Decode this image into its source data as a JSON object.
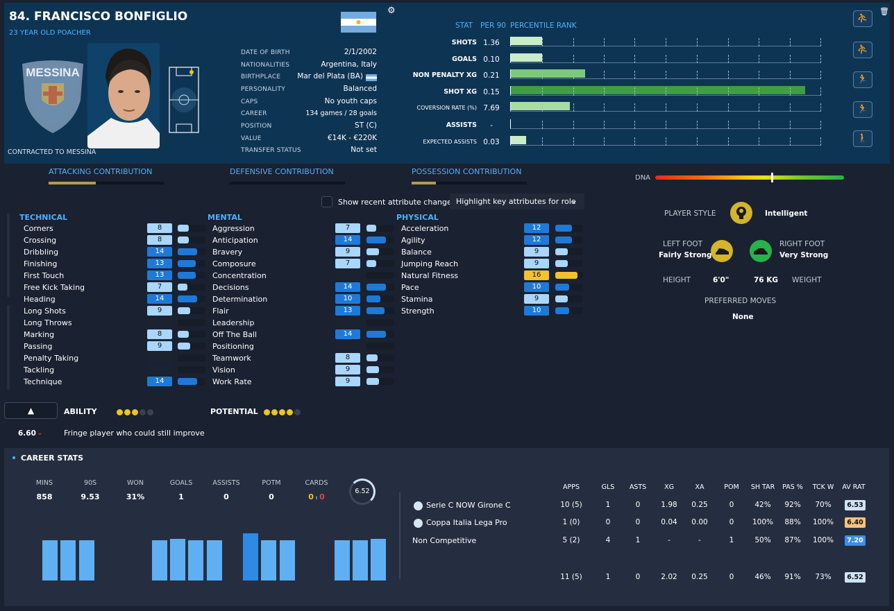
{
  "player": {
    "name": "84. FRANCISCO BONFIGLIO",
    "subtitle": "23 YEAR OLD POACHER",
    "contracted": "CONTRACTED TO MESSINA",
    "club_badge_text": "MESSINA"
  },
  "info": [
    {
      "label": "DATE OF BIRTH",
      "value": "2/1/2002"
    },
    {
      "label": "NATIONALITIES",
      "value": "Argentina, Italy"
    },
    {
      "label": "BIRTHPLACE",
      "value": "Mar del Plata (BA)"
    },
    {
      "label": "PERSONALITY",
      "value": "Balanced"
    },
    {
      "label": "CAPS",
      "value": "No youth caps"
    },
    {
      "label": "CAREER",
      "value": "134 games /  28 goals"
    },
    {
      "label": "POSITION",
      "value": "ST (C)"
    },
    {
      "label": "VALUE",
      "value": "€14K - €220K"
    },
    {
      "label": "TRANSFER STATUS",
      "value": "Not set"
    }
  ],
  "stats_header": {
    "stat": "STAT",
    "per90": "PER 90",
    "rank": "PERCENTILE RANK"
  },
  "stats": [
    {
      "label": "SHOTS",
      "per90": "1.36",
      "pct": 0.1,
      "color": "#c9ecc9"
    },
    {
      "label": "GOALS",
      "per90": "0.10",
      "pct": 0.1,
      "color": "#c9ecc9"
    },
    {
      "label": "NON PENALTY XG",
      "per90": "0.21",
      "pct": 0.24,
      "color": "#7cc97a"
    },
    {
      "label": "SHOT XG",
      "per90": "0.15",
      "pct": 0.95,
      "color": "#3f9e3f"
    },
    {
      "label": "COVERSION RATE (%)",
      "per90": "7.69",
      "pct": 0.19,
      "color": "#a8dca7"
    },
    {
      "label": "ASSISTS",
      "per90": "-",
      "pct": 0,
      "color": "#c9ecc9"
    },
    {
      "label": "EXPECTED ASSISTS",
      "per90": "0.03",
      "pct": 0.05,
      "color": "#c9ecc9"
    }
  ],
  "contribution": [
    {
      "label": "ATTACKING CONTRIBUTION",
      "value": 0.41
    },
    {
      "label": "DEFENSIVE CONTRIBUTION",
      "value": 0.0
    },
    {
      "label": "POSSESSION CONTRIBUTION",
      "value": 0.21
    }
  ],
  "dna": {
    "label": "DNA",
    "value": 0.62
  },
  "controls": {
    "show_recent": "Show recent attribute changes",
    "highlight": "Highlight key attributes for role"
  },
  "attributes": {
    "technical": {
      "title": "TECHNICAL",
      "items": [
        {
          "name": "Corners",
          "value": "8"
        },
        {
          "name": "Crossing",
          "value": "8"
        },
        {
          "name": "Dribbling",
          "value": "14"
        },
        {
          "name": "Finishing",
          "value": "13"
        },
        {
          "name": "First Touch",
          "value": "13"
        },
        {
          "name": "Free Kick Taking",
          "value": "7"
        },
        {
          "name": "Heading",
          "value": "14"
        },
        {
          "name": "Long Shots",
          "value": "9"
        },
        {
          "name": "Long Throws",
          "value": ""
        },
        {
          "name": "Marking",
          "value": "8"
        },
        {
          "name": "Passing",
          "value": "9"
        },
        {
          "name": "Penalty Taking",
          "value": ""
        },
        {
          "name": "Tackling",
          "value": ""
        },
        {
          "name": "Technique",
          "value": "14"
        }
      ]
    },
    "mental": {
      "title": "MENTAL",
      "items": [
        {
          "name": "Aggression",
          "value": "7"
        },
        {
          "name": "Anticipation",
          "value": "14"
        },
        {
          "name": "Bravery",
          "value": "9"
        },
        {
          "name": "Composure",
          "value": "7"
        },
        {
          "name": "Concentration",
          "value": ""
        },
        {
          "name": "Decisions",
          "value": "14"
        },
        {
          "name": "Determination",
          "value": "10"
        },
        {
          "name": "Flair",
          "value": "13"
        },
        {
          "name": "Leadership",
          "value": ""
        },
        {
          "name": "Off The Ball",
          "value": "14"
        },
        {
          "name": "Positioning",
          "value": ""
        },
        {
          "name": "Teamwork",
          "value": "8"
        },
        {
          "name": "Vision",
          "value": "9"
        },
        {
          "name": "Work Rate",
          "value": "9"
        }
      ]
    },
    "physical": {
      "title": "PHYSICAL",
      "items": [
        {
          "name": "Acceleration",
          "value": "12"
        },
        {
          "name": "Agility",
          "value": "12"
        },
        {
          "name": "Balance",
          "value": "9"
        },
        {
          "name": "Jumping Reach",
          "value": "9"
        },
        {
          "name": "Natural Fitness",
          "value": "16"
        },
        {
          "name": "Pace",
          "value": "10"
        },
        {
          "name": "Stamina",
          "value": "9"
        },
        {
          "name": "Strength",
          "value": "10"
        }
      ]
    }
  },
  "ability": {
    "label": "ABILITY",
    "stars": 3,
    "potential_label": "POTENTIAL",
    "potential_stars": 4
  },
  "rating": {
    "value": "6.60",
    "description": "Fringe player who could still improve"
  },
  "profile": {
    "player_style_label": "PLAYER STYLE",
    "player_style": "Intelligent",
    "left_foot_label": "LEFT FOOT",
    "left_foot": "Fairly Strong",
    "right_foot_label": "RIGHT FOOT",
    "right_foot": "Very Strong",
    "height_label": "HEIGHT",
    "height": "6'0\"",
    "weight_label": "WEIGHT",
    "weight": "76 KG",
    "preferred_moves_label": "PREFERRED MOVES",
    "preferred_moves": "None"
  },
  "career": {
    "title": "CAREER STATS",
    "summary": [
      {
        "label": "MINS",
        "value": "858"
      },
      {
        "label": "90S",
        "value": "9.53"
      },
      {
        "label": "WON",
        "value": "31%"
      },
      {
        "label": "GOALS",
        "value": "1"
      },
      {
        "label": "ASSISTS",
        "value": "0"
      },
      {
        "label": "POTM",
        "value": "0"
      }
    ],
    "cards_label": "CARDS",
    "yellow": "0",
    "red": "0",
    "avg_rating": "6.52",
    "histogram": [
      0.86,
      0.86,
      0.86,
      0,
      0,
      0,
      0.86,
      0.88,
      0.86,
      0.86,
      0,
      1.0,
      0.86,
      0.86,
      0,
      0.86,
      0.86,
      0.88
    ],
    "columns": [
      "APPS",
      "GLS",
      "ASTS",
      "XG",
      "XA",
      "POM",
      "SH TAR",
      "PAS %",
      "TCK W",
      "AV RAT"
    ],
    "rows": [
      {
        "comp": "Serie C NOW Girone C",
        "cells": [
          "10 (5)",
          "1",
          "0",
          "1.98",
          "0.25",
          "0",
          "42%",
          "92%",
          "70%"
        ],
        "rating": "6.53",
        "rating_color": "#cfe4f6"
      },
      {
        "comp": "Coppa Italia Lega Pro",
        "cells": [
          "1 (0)",
          "0",
          "0",
          "0.04",
          "0.00",
          "0",
          "100%",
          "88%",
          "100%"
        ],
        "rating": "6.40",
        "rating_color": "#f7c27a"
      },
      {
        "comp": "Non Competitive",
        "cells": [
          "5 (2)",
          "4",
          "1",
          "-",
          "-",
          "1",
          "50%",
          "87%",
          "100%"
        ],
        "rating": "7.20",
        "rating_color": "#3a8fe8"
      }
    ],
    "total": {
      "cells": [
        "11 (5)",
        "1",
        "0",
        "2.02",
        "0.25",
        "0",
        "46%",
        "91%",
        "73%"
      ],
      "rating": "6.52",
      "rating_color": "#cfe4f6"
    }
  }
}
